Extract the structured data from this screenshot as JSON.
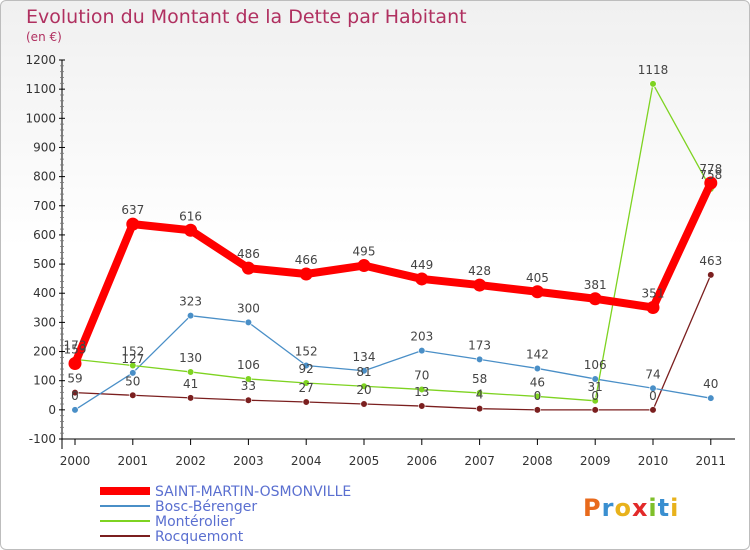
{
  "chart_data": {
    "type": "line",
    "title": "Evolution du Montant de la Dette par Habitant",
    "subtitle": "(en €)",
    "categories": [
      "2000",
      "2001",
      "2002",
      "2003",
      "2004",
      "2005",
      "2006",
      "2007",
      "2008",
      "2009",
      "2010",
      "2011"
    ],
    "ylim": [
      -100,
      1200
    ],
    "yticks": [
      -100,
      0,
      100,
      200,
      300,
      400,
      500,
      600,
      700,
      800,
      900,
      1000,
      1100,
      1200
    ],
    "grid": false,
    "legend_position": "bottom-left",
    "series": [
      {
        "name": "SAINT-MARTIN-OSMONVILLE",
        "color": "#ff0000",
        "values": [
          159,
          637,
          616,
          486,
          466,
          495,
          449,
          428,
          405,
          381,
          351,
          778
        ],
        "labels": [
          "159",
          "637",
          "616",
          "486",
          "466",
          "495",
          "449",
          "428",
          "405",
          "381",
          "351",
          "778"
        ]
      },
      {
        "name": "Bosc-Bérenger",
        "color": "#4a8fc7",
        "values": [
          0,
          127,
          323,
          300,
          152,
          134,
          203,
          173,
          142,
          106,
          74,
          40
        ],
        "labels": [
          "0",
          "127",
          "323",
          "300",
          "152",
          "134",
          "203",
          "173",
          "142",
          "106",
          "74",
          "40"
        ]
      },
      {
        "name": "Montérolier",
        "color": "#7ed321",
        "values": [
          173,
          152,
          130,
          106,
          92,
          81,
          70,
          58,
          46,
          31,
          1118,
          758
        ],
        "labels": [
          "173",
          "152",
          "130",
          "106",
          "92",
          "81",
          "70",
          "58",
          "46",
          "31",
          "1118",
          "758"
        ]
      },
      {
        "name": "Rocquemont",
        "color": "#7b1f1f",
        "values": [
          59,
          50,
          41,
          33,
          27,
          20,
          13,
          4,
          0,
          0,
          0,
          463
        ],
        "labels": [
          "59",
          "50",
          "41",
          "33",
          "27",
          "20",
          "13",
          "4",
          "0",
          "0",
          "0",
          "463"
        ]
      }
    ]
  },
  "brand": {
    "logo_text": "Proxiti"
  },
  "colors": {
    "title": "#b03060",
    "legend_text": "#5a6fd0",
    "axis": "#000000",
    "tick_text": "#333333",
    "label_text": "#444444"
  }
}
